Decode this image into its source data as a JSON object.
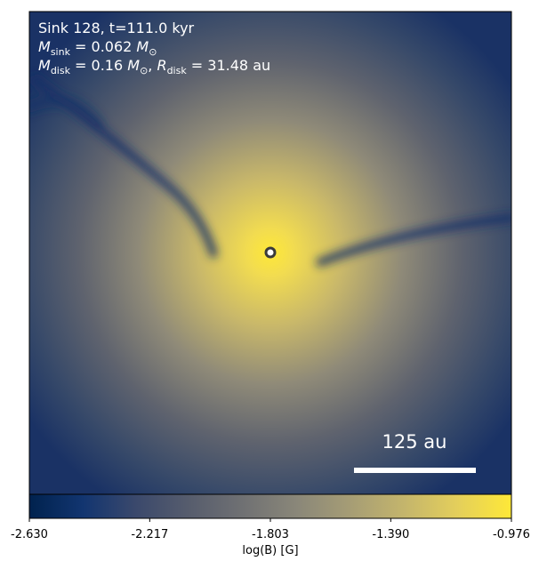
{
  "chart_data": {
    "type": "image",
    "annotation_lines": [
      [
        {
          "text": "Sink 128, t=111.0 kyr"
        }
      ],
      [
        {
          "text": "M",
          "italic": true
        },
        {
          "text": "sink",
          "sub": true
        },
        {
          "text": " = 0.062 "
        },
        {
          "text": "M",
          "italic": true
        },
        {
          "text": "⊙",
          "sub": true
        }
      ],
      [
        {
          "text": "M",
          "italic": true
        },
        {
          "text": "disk",
          "sub": true
        },
        {
          "text": " = 0.16 "
        },
        {
          "text": "M",
          "italic": true
        },
        {
          "text": "⊙",
          "sub": true
        },
        {
          "text": ", "
        },
        {
          "text": "R",
          "italic": true
        },
        {
          "text": "disk",
          "sub": true
        },
        {
          "text": " = 31.48 au"
        }
      ]
    ],
    "scalebar_label": "125 au",
    "colorbar_label": "log(B) [G]",
    "clim": [
      -2.63,
      -0.976
    ],
    "cticks": [
      {
        "value": -2.63,
        "label": "-2.630"
      },
      -2.217,
      -1.803,
      {
        "value": -1.39,
        "label": "-1.390"
      },
      -0.976
    ],
    "colormap": [
      "#00224e",
      "#123570",
      "#3b496c",
      "#575d6d",
      "#707173",
      "#8a8779",
      "#a69d75",
      "#c4b56c",
      "#e4cf5b",
      "#fee838"
    ]
  }
}
